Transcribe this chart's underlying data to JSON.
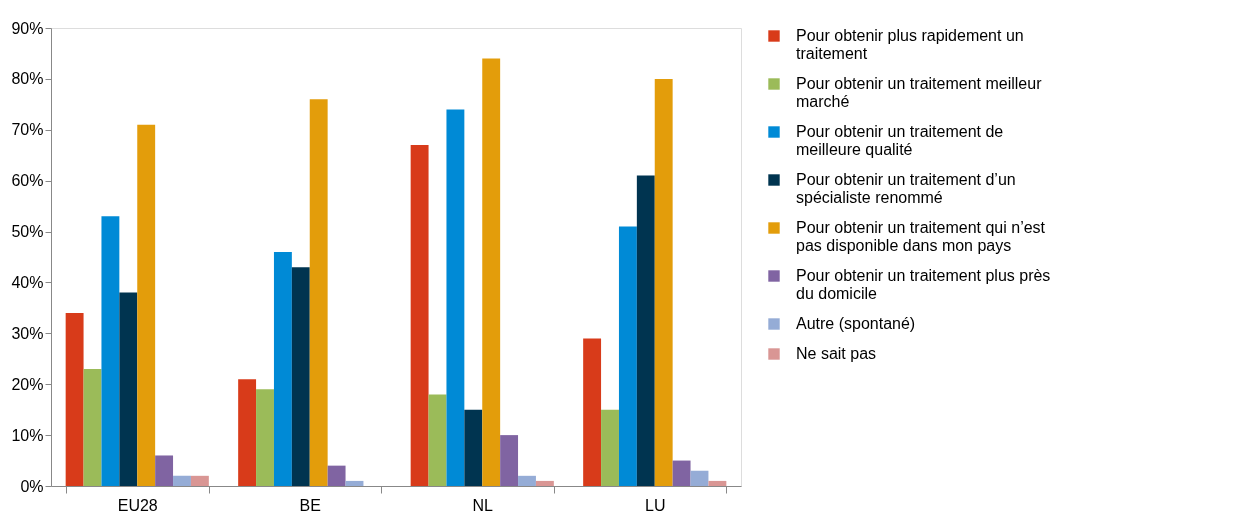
{
  "chart_data": {
    "type": "bar",
    "categories": [
      "EU28",
      "BE",
      "NL",
      "LU"
    ],
    "series": [
      {
        "name": "Pour obtenir plus rapidement un traitement",
        "color": "#d83b1a",
        "values": [
          34,
          21,
          67,
          29
        ]
      },
      {
        "name": "Pour obtenir un traitement meilleur marché",
        "color": "#9bbb59",
        "values": [
          23,
          19,
          18,
          15
        ]
      },
      {
        "name": "Pour obtenir un traitement de meilleure qualité",
        "color": "#008ad6",
        "values": [
          53,
          46,
          74,
          51
        ]
      },
      {
        "name": "Pour obtenir un traitement d’un spécialiste renommé",
        "color": "#003450",
        "values": [
          38,
          43,
          15,
          61
        ]
      },
      {
        "name": "Pour obtenir un traitement qui n’est pas disponible dans mon pays",
        "color": "#e39d0b",
        "values": [
          71,
          76,
          84,
          80
        ]
      },
      {
        "name": "Pour obtenir un traitement plus près du domicile",
        "color": "#8064a2",
        "values": [
          6,
          4,
          10,
          5
        ]
      },
      {
        "name": "Autre (spontané)",
        "color": "#95acd6",
        "values": [
          2,
          1,
          2,
          3
        ]
      },
      {
        "name": "Ne sait pas",
        "color": "#d99694",
        "values": [
          2,
          0,
          1,
          1
        ]
      }
    ],
    "ylim": [
      0,
      90
    ],
    "yticks": [
      {
        "value": 0,
        "label": "0%"
      },
      {
        "value": 10,
        "label": "10%"
      },
      {
        "value": 20,
        "label": "20%"
      },
      {
        "value": 30,
        "label": "30%"
      },
      {
        "value": 40,
        "label": "40%"
      },
      {
        "value": 50,
        "label": "50%"
      },
      {
        "value": 60,
        "label": "60%"
      },
      {
        "value": 70,
        "label": "70%"
      },
      {
        "value": 80,
        "label": "80%"
      },
      {
        "value": 90,
        "label": "90%"
      }
    ],
    "grid": false,
    "legend": "right"
  }
}
